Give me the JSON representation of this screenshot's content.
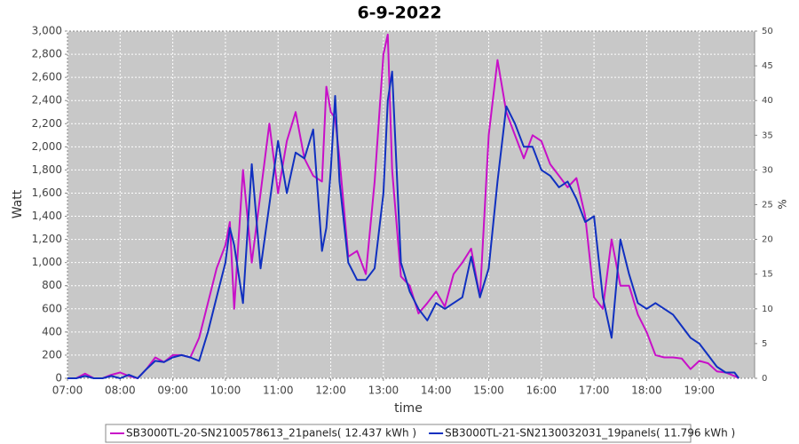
{
  "chart_data": {
    "type": "line",
    "title": "6-9-2022",
    "x_label": "time",
    "y_label": "Watt",
    "y2_label": "%",
    "x": [
      "07:00",
      "07:10",
      "07:20",
      "07:30",
      "07:40",
      "07:50",
      "08:00",
      "08:10",
      "08:20",
      "08:30",
      "08:40",
      "08:50",
      "09:00",
      "09:10",
      "09:20",
      "09:30",
      "09:40",
      "09:50",
      "10:00",
      "10:05",
      "10:10",
      "10:20",
      "10:30",
      "10:40",
      "10:50",
      "11:00",
      "11:10",
      "11:20",
      "11:30",
      "11:40",
      "11:50",
      "11:55",
      "12:00",
      "12:05",
      "12:10",
      "12:20",
      "12:30",
      "12:40",
      "12:50",
      "13:00",
      "13:05",
      "13:10",
      "13:20",
      "13:30",
      "13:40",
      "13:50",
      "14:00",
      "14:10",
      "14:20",
      "14:30",
      "14:40",
      "14:50",
      "15:00",
      "15:10",
      "15:20",
      "15:30",
      "15:40",
      "15:50",
      "16:00",
      "16:10",
      "16:20",
      "16:30",
      "16:40",
      "16:50",
      "17:00",
      "17:10",
      "17:20",
      "17:30",
      "17:40",
      "17:50",
      "18:00",
      "18:10",
      "18:20",
      "18:30",
      "18:40",
      "18:50",
      "19:00",
      "19:10",
      "19:20",
      "19:30",
      "19:40",
      "19:45"
    ],
    "series": [
      {
        "name": "SB3000TL-20-SN2100578613_21panels( 12.437 kWh )",
        "color": "#c810c8",
        "values": [
          0,
          0,
          40,
          0,
          0,
          30,
          50,
          20,
          0,
          80,
          180,
          140,
          200,
          200,
          180,
          350,
          650,
          950,
          1150,
          1350,
          600,
          1800,
          1000,
          1600,
          2200,
          1600,
          2050,
          2300,
          1900,
          1750,
          1700,
          2520,
          2300,
          2250,
          1900,
          1050,
          1100,
          900,
          1700,
          2800,
          2970,
          1800,
          880,
          800,
          560,
          650,
          750,
          620,
          900,
          1000,
          1120,
          700,
          2100,
          2750,
          2300,
          2100,
          1900,
          2100,
          2050,
          1850,
          1750,
          1650,
          1730,
          1400,
          700,
          600,
          1200,
          800,
          800,
          550,
          400,
          200,
          180,
          180,
          170,
          80,
          150,
          130,
          60,
          50,
          20,
          0
        ]
      },
      {
        "name": "SB3000TL-21-SN2130032031_19panels( 11.796 kWh )",
        "color": "#1030c0",
        "values": [
          0,
          0,
          20,
          0,
          0,
          20,
          0,
          30,
          0,
          80,
          150,
          140,
          180,
          200,
          180,
          150,
          400,
          700,
          1000,
          1300,
          1150,
          650,
          1850,
          950,
          1500,
          2050,
          1600,
          1950,
          1900,
          2150,
          1100,
          1300,
          1800,
          2440,
          1700,
          1000,
          850,
          850,
          950,
          1600,
          2400,
          2650,
          1000,
          750,
          600,
          500,
          650,
          600,
          650,
          700,
          1050,
          700,
          950,
          1700,
          2350,
          2200,
          2000,
          2000,
          1800,
          1750,
          1650,
          1700,
          1550,
          1350,
          1400,
          700,
          350,
          1200,
          900,
          650,
          600,
          650,
          600,
          550,
          450,
          350,
          300,
          200,
          100,
          50,
          50,
          0
        ]
      }
    ],
    "xlim": [
      "07:00",
      "20:03"
    ],
    "xticks": [
      "07:00",
      "08:00",
      "09:00",
      "10:00",
      "11:00",
      "12:00",
      "13:00",
      "14:00",
      "15:00",
      "16:00",
      "17:00",
      "18:00",
      "19:00"
    ],
    "ylim": [
      0,
      3000
    ],
    "yticks": [
      0,
      200,
      400,
      600,
      800,
      {
        "value": 1000,
        "label": "1,000"
      },
      {
        "value": 1200,
        "label": "1,200"
      },
      {
        "value": 1400,
        "label": "1,400"
      },
      {
        "value": 1600,
        "label": "1,600"
      },
      {
        "value": 1800,
        "label": "1,800"
      },
      {
        "value": 2000,
        "label": "2,000"
      },
      {
        "value": 2200,
        "label": "2,200"
      },
      {
        "value": 2400,
        "label": "2,400"
      },
      {
        "value": 2600,
        "label": "2,600"
      },
      {
        "value": 2800,
        "label": "2,800"
      },
      {
        "value": 3000,
        "label": "3,000"
      }
    ],
    "y2lim": [
      0,
      50
    ],
    "y2ticks": [
      0,
      5,
      10,
      15,
      20,
      25,
      30,
      35,
      40,
      45,
      50
    ],
    "grid": true
  }
}
